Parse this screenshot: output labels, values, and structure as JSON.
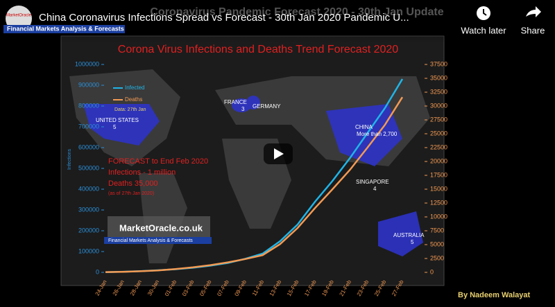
{
  "player": {
    "title": "China Coronavirus Infections Spread vs Forecast - 30th Jan 2020 Pandemic U...",
    "watch_later": "Watch later",
    "share": "Share",
    "thumbnail_title": "Coronavirus Pandemic Forecast 2020 - 30th Jan Update",
    "logo_text": "MarketOracle",
    "banner": "Financial Markets Analysis & Forecasts"
  },
  "chart_data": {
    "type": "line",
    "title": "Corona Virus Infections and Deaths Trend Forecast 2020",
    "y_label": "Infections",
    "categories": [
      "24-Jan",
      "26-Jan",
      "28-Jan",
      "30-Jan",
      "01-Feb",
      "03-Feb",
      "05-Feb",
      "07-Feb",
      "09-Feb",
      "11-Feb",
      "13-Feb",
      "15-Feb",
      "17-Feb",
      "19-Feb",
      "21-Feb",
      "23-Feb",
      "25-Feb",
      "27-Feb"
    ],
    "series": [
      {
        "name": "Infected",
        "color": "#1fb5e8",
        "values": [
          1000,
          3000,
          6000,
          10000,
          15000,
          22000,
          32000,
          45000,
          65000,
          90000,
          150000,
          230000,
          340000,
          440000,
          550000,
          670000,
          790000,
          930000
        ]
      },
      {
        "name": "Deaths",
        "color": "#f39a53",
        "axis": "y2",
        "values": [
          50,
          100,
          200,
          350,
          600,
          900,
          1300,
          1800,
          2400,
          3100,
          5100,
          8000,
          11600,
          15000,
          18500,
          22500,
          26600,
          31600
        ]
      }
    ],
    "ylim": [
      0,
      1000000
    ],
    "yticks": [
      0,
      100000,
      200000,
      300000,
      400000,
      500000,
      600000,
      700000,
      800000,
      900000,
      1000000
    ],
    "y2lim": [
      0,
      37500
    ],
    "y2ticks": [
      0,
      2500,
      5000,
      7500,
      10000,
      12500,
      15000,
      17500,
      20000,
      22500,
      25000,
      27500,
      30000,
      32500,
      35000,
      37500
    ],
    "legend": "upper left",
    "annotations": [
      "Data: 27th Jan",
      "FORECAST to End Feb 2020",
      "Infections - 1 million",
      "Deaths 35,000",
      "(as of 27th Jan 2020)"
    ]
  },
  "map_labels": [
    {
      "name": "UNITED STATES",
      "cases": 5
    },
    {
      "name": "FRANCE",
      "cases": 3
    },
    {
      "name": "GERMANY"
    },
    {
      "name": "CHINA",
      "cases": "More than 2,700"
    },
    {
      "name": "SINGAPORE",
      "cases": 4
    },
    {
      "name": "AUSTRALIA",
      "cases": 5
    }
  ],
  "watermark": {
    "site": "MarketOracle.co.uk",
    "tagline": "Financial Markets Analysis & Forecasts"
  },
  "credit": "By Nadeem Walayat"
}
